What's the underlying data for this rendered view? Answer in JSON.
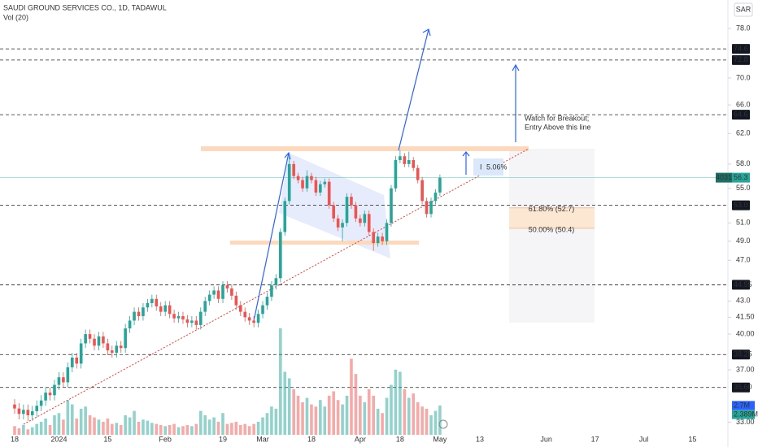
{
  "chart_data": {
    "type": "candlestick",
    "title": "SAUDI GROUND SERVICES CO., 1D, TADAWUL",
    "subtitle": "Vol (20)",
    "currency": "SAR",
    "log_scale": true,
    "up_color": "#26a69a",
    "down_color": "#ef5350",
    "categories": [
      "18",
      null,
      null,
      null,
      null,
      null,
      null,
      null,
      null,
      null,
      "2024",
      null,
      null,
      null,
      null,
      null,
      null,
      null,
      null,
      null,
      null,
      "15",
      null,
      null,
      null,
      null,
      null,
      null,
      null,
      null,
      null,
      null,
      null,
      null,
      "Feb",
      null,
      null,
      null,
      null,
      null,
      null,
      null,
      null,
      null,
      null,
      null,
      null,
      "19",
      null,
      null,
      null,
      null,
      null,
      null,
      null,
      null,
      "Mar",
      null,
      null,
      null,
      null,
      null,
      null,
      null,
      null,
      null,
      null,
      "18",
      null,
      null,
      null,
      null,
      null,
      null,
      null,
      null,
      null,
      null,
      "Apr",
      null,
      null,
      null,
      null,
      null,
      null,
      null,
      null,
      "18",
      null,
      null,
      null,
      null,
      null,
      null,
      null,
      null,
      "May"
    ],
    "open": [
      34.3,
      34.0,
      33.6,
      33.9,
      33.5,
      33.8,
      34.2,
      34.6,
      35.2,
      35.0,
      35.8,
      36.4,
      36.0,
      37.2,
      38.0,
      37.5,
      39.2,
      40.0,
      39.6,
      39.0,
      39.8,
      39.2,
      38.6,
      38.4,
      39.0,
      38.8,
      40.5,
      41.2,
      42.0,
      41.6,
      42.4,
      42.8,
      43.2,
      42.5,
      42.0,
      42.6,
      41.8,
      41.4,
      41.6,
      41.3,
      41.0,
      41.2,
      40.8,
      42.0,
      43.0,
      43.6,
      44.0,
      43.2,
      44.5,
      44.2,
      43.5,
      42.6,
      42.0,
      41.5,
      41.2,
      41.0,
      41.8,
      42.6,
      43.4,
      44.5,
      45.2,
      50.0,
      53.5,
      58.0,
      56.5,
      56.0,
      55.0,
      56.5,
      56.0,
      54.5,
      55.5,
      55.8,
      53.0,
      51.5,
      50.5,
      51.0,
      54.0,
      53.0,
      51.5,
      51.0,
      52.0,
      50.0,
      48.8,
      49.5,
      49.0,
      51.0,
      55.0,
      58.5,
      59.0,
      58.0,
      58.5,
      57.5,
      56.0,
      53.5,
      52.0,
      53.5,
      54.5
    ],
    "high": [
      34.7,
      34.4,
      34.3,
      34.3,
      34.2,
      34.6,
      35.0,
      35.6,
      35.6,
      36.2,
      36.8,
      36.8,
      37.6,
      38.4,
      38.4,
      39.6,
      40.4,
      40.4,
      40.0,
      40.2,
      40.2,
      39.6,
      39.0,
      39.4,
      39.4,
      40.9,
      41.6,
      42.4,
      42.4,
      42.8,
      43.2,
      43.6,
      43.6,
      42.9,
      43.0,
      43.0,
      42.2,
      42.0,
      42.0,
      41.7,
      41.6,
      41.6,
      42.4,
      43.4,
      44.0,
      44.4,
      44.4,
      44.9,
      44.9,
      44.6,
      43.9,
      43.0,
      42.4,
      41.9,
      41.6,
      42.2,
      43.0,
      43.8,
      44.9,
      45.6,
      50.4,
      53.9,
      59.0,
      58.4,
      56.9,
      56.4,
      57.2,
      56.9,
      56.4,
      55.9,
      56.2,
      56.2,
      53.4,
      51.9,
      51.4,
      54.4,
      54.4,
      53.4,
      51.9,
      52.4,
      52.4,
      50.4,
      49.9,
      49.9,
      51.4,
      55.4,
      59.0,
      59.8,
      59.4,
      59.6,
      58.9,
      57.9,
      56.4,
      53.9,
      53.9,
      54.9,
      56.7
    ],
    "low": [
      33.6,
      33.2,
      33.2,
      33.1,
      33.1,
      33.4,
      33.8,
      34.2,
      34.6,
      34.6,
      35.4,
      35.6,
      35.6,
      36.8,
      37.1,
      37.1,
      38.8,
      39.2,
      38.6,
      38.6,
      38.8,
      38.2,
      38.0,
      38.0,
      38.4,
      38.4,
      40.1,
      40.8,
      41.2,
      41.2,
      42.0,
      42.4,
      42.1,
      41.6,
      41.6,
      41.4,
      41.0,
      41.0,
      40.9,
      40.6,
      40.6,
      40.4,
      40.4,
      41.6,
      42.6,
      43.2,
      42.8,
      42.8,
      43.8,
      43.1,
      42.2,
      41.6,
      41.1,
      40.8,
      40.6,
      40.6,
      41.4,
      42.2,
      43.0,
      44.1,
      44.8,
      49.6,
      53.1,
      56.1,
      55.6,
      54.6,
      54.6,
      55.6,
      54.1,
      54.1,
      55.1,
      52.6,
      51.1,
      50.1,
      49.0,
      50.6,
      52.6,
      51.1,
      50.6,
      50.6,
      49.6,
      48.0,
      48.4,
      48.6,
      48.6,
      50.6,
      54.6,
      58.1,
      57.6,
      57.6,
      57.1,
      55.6,
      53.1,
      51.6,
      51.6,
      53.1,
      54.1
    ],
    "close": [
      34.0,
      33.6,
      33.9,
      33.5,
      33.8,
      34.2,
      34.6,
      35.2,
      35.0,
      35.8,
      36.4,
      36.0,
      37.2,
      38.0,
      37.5,
      39.2,
      40.0,
      39.6,
      39.0,
      39.8,
      39.2,
      38.6,
      38.4,
      39.0,
      38.8,
      40.5,
      41.2,
      42.0,
      41.6,
      42.4,
      42.8,
      43.2,
      42.5,
      42.0,
      42.6,
      41.8,
      41.4,
      41.6,
      41.3,
      41.0,
      41.2,
      40.8,
      42.0,
      43.0,
      43.6,
      44.0,
      43.2,
      44.5,
      44.2,
      43.5,
      42.6,
      42.0,
      41.5,
      41.2,
      41.0,
      41.8,
      42.6,
      43.4,
      44.5,
      45.2,
      50.0,
      53.5,
      58.0,
      56.5,
      56.0,
      55.0,
      56.5,
      56.0,
      54.5,
      55.5,
      55.8,
      53.0,
      51.5,
      50.5,
      51.0,
      54.0,
      53.0,
      51.5,
      51.0,
      52.0,
      50.0,
      48.8,
      49.5,
      49.0,
      51.0,
      55.0,
      58.5,
      59.0,
      58.0,
      58.5,
      57.5,
      56.0,
      53.5,
      52.0,
      53.5,
      54.5,
      56.3
    ],
    "volume": [
      0.8,
      0.6,
      0.9,
      0.5,
      0.7,
      1.0,
      1.2,
      1.5,
      0.9,
      1.8,
      2.0,
      1.4,
      3.2,
      2.8,
      1.5,
      2.4,
      2.6,
      1.8,
      1.6,
      1.4,
      1.2,
      1.5,
      1.0,
      1.1,
      0.9,
      1.8,
      1.6,
      2.2,
      1.2,
      1.4,
      1.3,
      1.1,
      1.0,
      0.9,
      0.8,
      0.9,
      1.0,
      0.7,
      0.8,
      0.9,
      0.8,
      1.0,
      2.2,
      1.8,
      1.4,
      1.6,
      1.2,
      2.0,
      1.0,
      1.1,
      1.2,
      0.9,
      1.0,
      0.8,
      1.0,
      1.2,
      1.6,
      2.0,
      2.6,
      2.4,
      9.8,
      5.8,
      5.2,
      4.2,
      3.6,
      3.0,
      3.4,
      2.8,
      2.6,
      3.2,
      2.6,
      3.6,
      4.0,
      3.2,
      2.8,
      3.6,
      7.0,
      5.6,
      3.6,
      3.0,
      4.2,
      3.6,
      2.4,
      2.0,
      3.4,
      4.6,
      6.0,
      5.8,
      4.2,
      3.4,
      3.8,
      3.0,
      2.6,
      2.4,
      1.8,
      2.2,
      2.7
    ],
    "volume_lim": [
      0,
      40
    ],
    "volume_labels": [
      {
        "value": 2.7,
        "label": "2.7M"
      },
      {
        "value": 2.389,
        "label": "2.389M"
      }
    ],
    "xlim": [
      -3.3,
      161
    ],
    "xticks": [
      {
        "value": 0,
        "label": "18"
      },
      {
        "value": 10,
        "label": "2024"
      },
      {
        "value": 21,
        "label": "15"
      },
      {
        "value": 34,
        "label": "Feb"
      },
      {
        "value": 47,
        "label": "19"
      },
      {
        "value": 56,
        "label": "Mar"
      },
      {
        "value": 67,
        "label": "18"
      },
      {
        "value": 78,
        "label": "Apr"
      },
      {
        "value": 87,
        "label": "18"
      },
      {
        "value": 96,
        "label": "May"
      },
      {
        "value": 105,
        "label": "13"
      },
      {
        "value": 120,
        "label": "Jun"
      },
      {
        "value": 131,
        "label": "17"
      },
      {
        "value": 142,
        "label": "Jul"
      },
      {
        "value": 153,
        "label": "15"
      }
    ],
    "ylim": [
      32.1,
      83.0
    ],
    "yticks": [
      {
        "value": 78,
        "label": "78.0"
      },
      {
        "value": 70,
        "label": "70.0"
      },
      {
        "value": 66,
        "label": "66.0"
      },
      {
        "value": 62,
        "label": "62.0"
      },
      {
        "value": 58,
        "label": "58.0"
      },
      {
        "value": 55,
        "label": "55.0"
      },
      {
        "value": 51,
        "label": "51.0"
      },
      {
        "value": 49,
        "label": "49.0"
      },
      {
        "value": 47,
        "label": "47.0"
      },
      {
        "value": 43,
        "label": "43.0"
      },
      {
        "value": 41.5,
        "label": "41.50"
      },
      {
        "value": 40,
        "label": "40.00"
      },
      {
        "value": 37,
        "label": "37.00"
      },
      {
        "value": 33,
        "label": "33.00"
      }
    ],
    "levels": [
      74.6,
      72.8,
      64.6,
      {
        "value": 53,
        "label": "53.0"
      },
      44.55,
      38.25,
      {
        "value": 35.6,
        "label": "35.60"
      }
    ],
    "current_price": 56.3,
    "symbol_code": "4031",
    "fib_levels": [
      {
        "value": 52.7,
        "label": "61.80% (52.7)"
      },
      {
        "value": 50.4,
        "label": "50.00% (50.4)"
      }
    ],
    "annotations": [
      "Watch for Breakout;",
      "Entry Above this line",
      "5.06%"
    ]
  }
}
